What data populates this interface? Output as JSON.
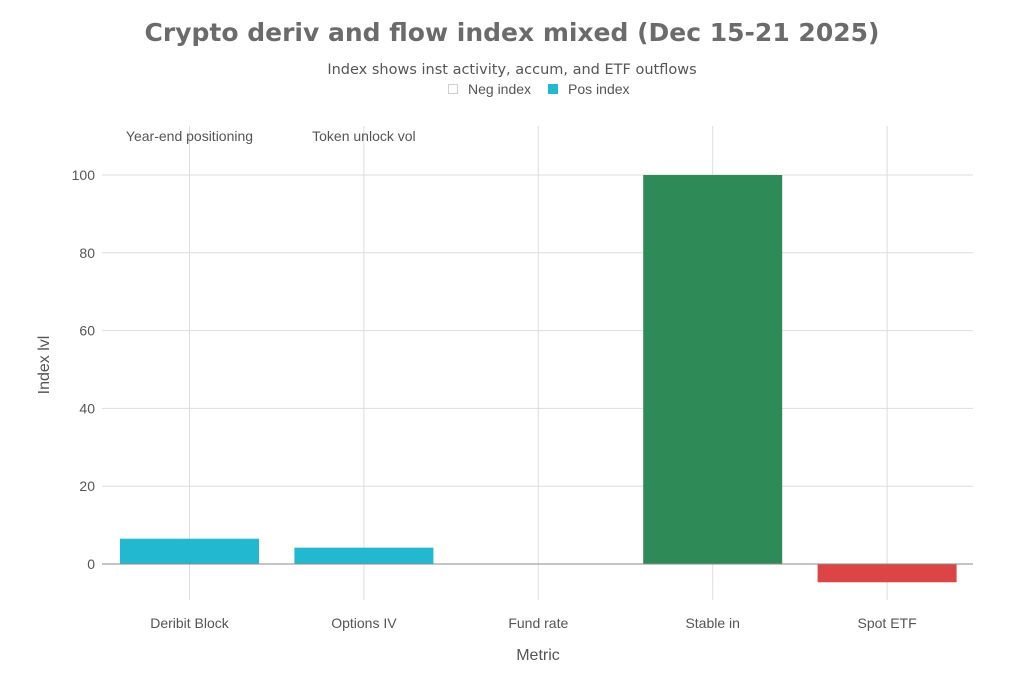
{
  "chart_data": {
    "type": "bar",
    "title": "Crypto deriv and flow index mixed (Dec 15-21 2025)",
    "subtitle": "Index shows inst activity, accum, and ETF outflows",
    "xlabel": "Metric",
    "ylabel": "Index lvl",
    "ylim": [
      -5,
      112
    ],
    "yticks": [
      0,
      20,
      40,
      60,
      80,
      100
    ],
    "grid": true,
    "legend_placement": "top-center",
    "legend": [
      {
        "label": "Neg index",
        "color": "#ffffff"
      },
      {
        "label": "Pos index",
        "color": "#22b8cf"
      }
    ],
    "categories": [
      "Deribit Block",
      "Options IV",
      "Fund rate",
      "Stable in",
      "Spot ETF"
    ],
    "values": [
      6.5,
      4.2,
      0,
      100,
      -4.7
    ],
    "bar_colors": [
      "#22b8cf",
      "#22b8cf",
      "#22b8cf",
      "#2e8b57",
      "#dc4545"
    ],
    "annotations": [
      {
        "text": "Year-end positioning",
        "category": "Deribit Block"
      },
      {
        "text": "Token unlock vol",
        "category": "Options IV"
      }
    ]
  }
}
